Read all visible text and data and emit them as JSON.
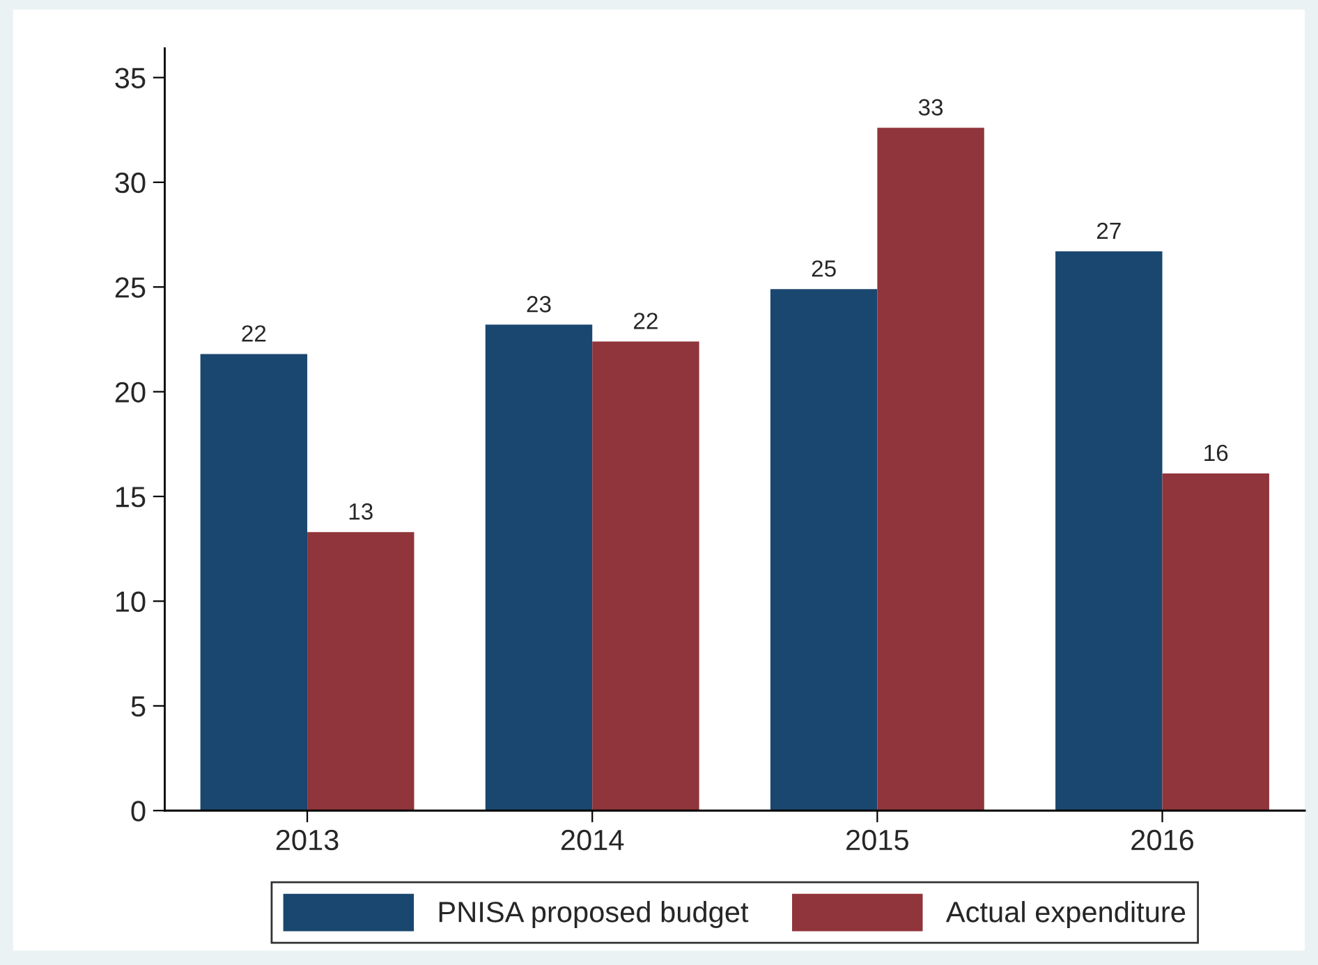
{
  "chart_data": {
    "type": "bar",
    "categories": [
      "2013",
      "2014",
      "2015",
      "2016"
    ],
    "series": [
      {
        "name": "PNISA proposed budget",
        "color": "#1a476f",
        "values": [
          21.8,
          23.2,
          24.9,
          26.7
        ],
        "value_labels": [
          "22",
          "23",
          "25",
          "27"
        ]
      },
      {
        "name": "Actual expenditure",
        "color": "#90353b",
        "values": [
          13.3,
          22.4,
          32.6,
          16.1
        ],
        "value_labels": [
          "13",
          "22",
          "33",
          "16"
        ]
      }
    ],
    "ylim": [
      0,
      36.4
    ],
    "yticks": [
      0,
      5,
      10,
      15,
      20,
      25,
      30,
      35
    ],
    "grid": false,
    "legend": "bottom"
  }
}
